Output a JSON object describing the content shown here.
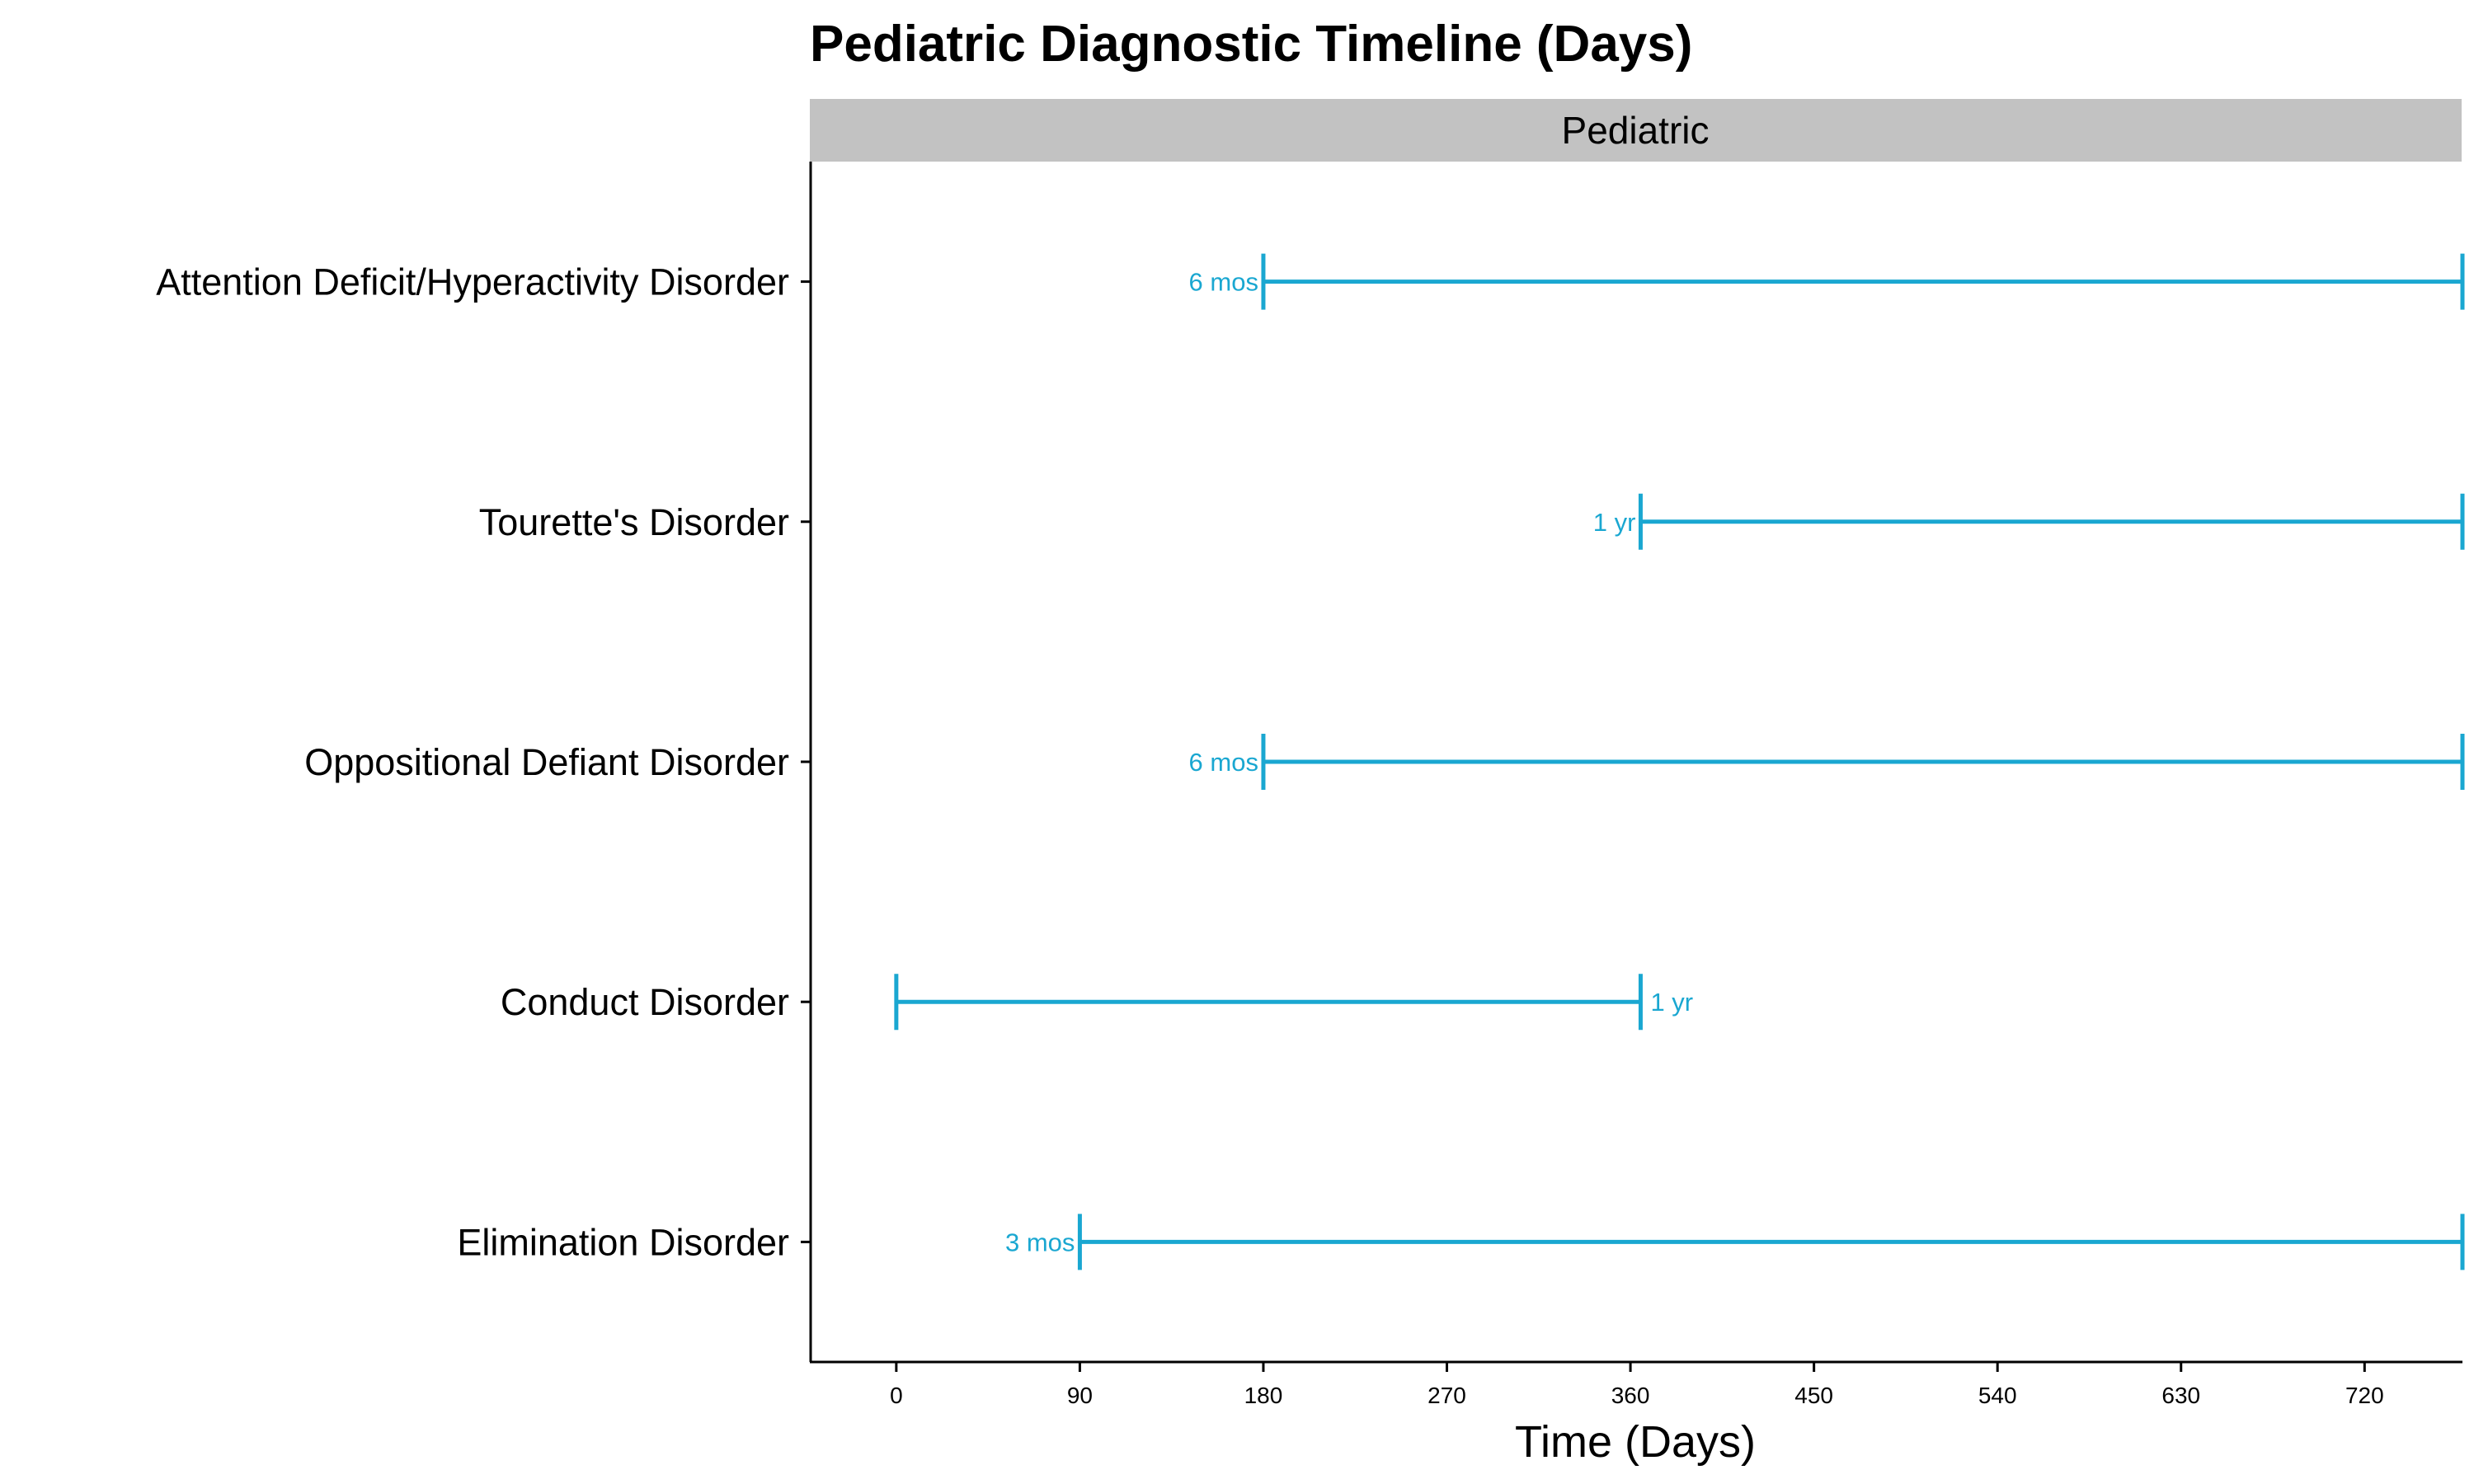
{
  "chart_data": {
    "type": "range",
    "title": "Pediatric Diagnostic Timeline (Days)",
    "facet": "Pediatric",
    "xlabel": "Time (Days)",
    "ylabel": "",
    "xlim": [
      -42,
      768
    ],
    "xticks": [
      0,
      90,
      180,
      270,
      360,
      450,
      540,
      630,
      720
    ],
    "color": "#1aa7d1",
    "categories": [
      "Attention Deficit/Hyperactivity Disorder",
      "Tourette's Disorder",
      "Oppositional Defiant Disorder",
      "Conduct Disorder",
      "Elimination Disorder"
    ],
    "ranges": [
      {
        "category": "Attention Deficit/Hyperactivity Disorder",
        "start": 180,
        "end": 768,
        "label": "6 mos",
        "label_at": "start"
      },
      {
        "category": "Tourette's Disorder",
        "start": 365,
        "end": 768,
        "label": "1 yr",
        "label_at": "start"
      },
      {
        "category": "Oppositional Defiant Disorder",
        "start": 180,
        "end": 768,
        "label": "6 mos",
        "label_at": "start"
      },
      {
        "category": "Conduct Disorder",
        "start": 0,
        "end": 365,
        "label": "1 yr",
        "label_at": "end"
      },
      {
        "category": "Elimination Disorder",
        "start": 90,
        "end": 768,
        "label": "3 mos",
        "label_at": "start"
      }
    ]
  }
}
